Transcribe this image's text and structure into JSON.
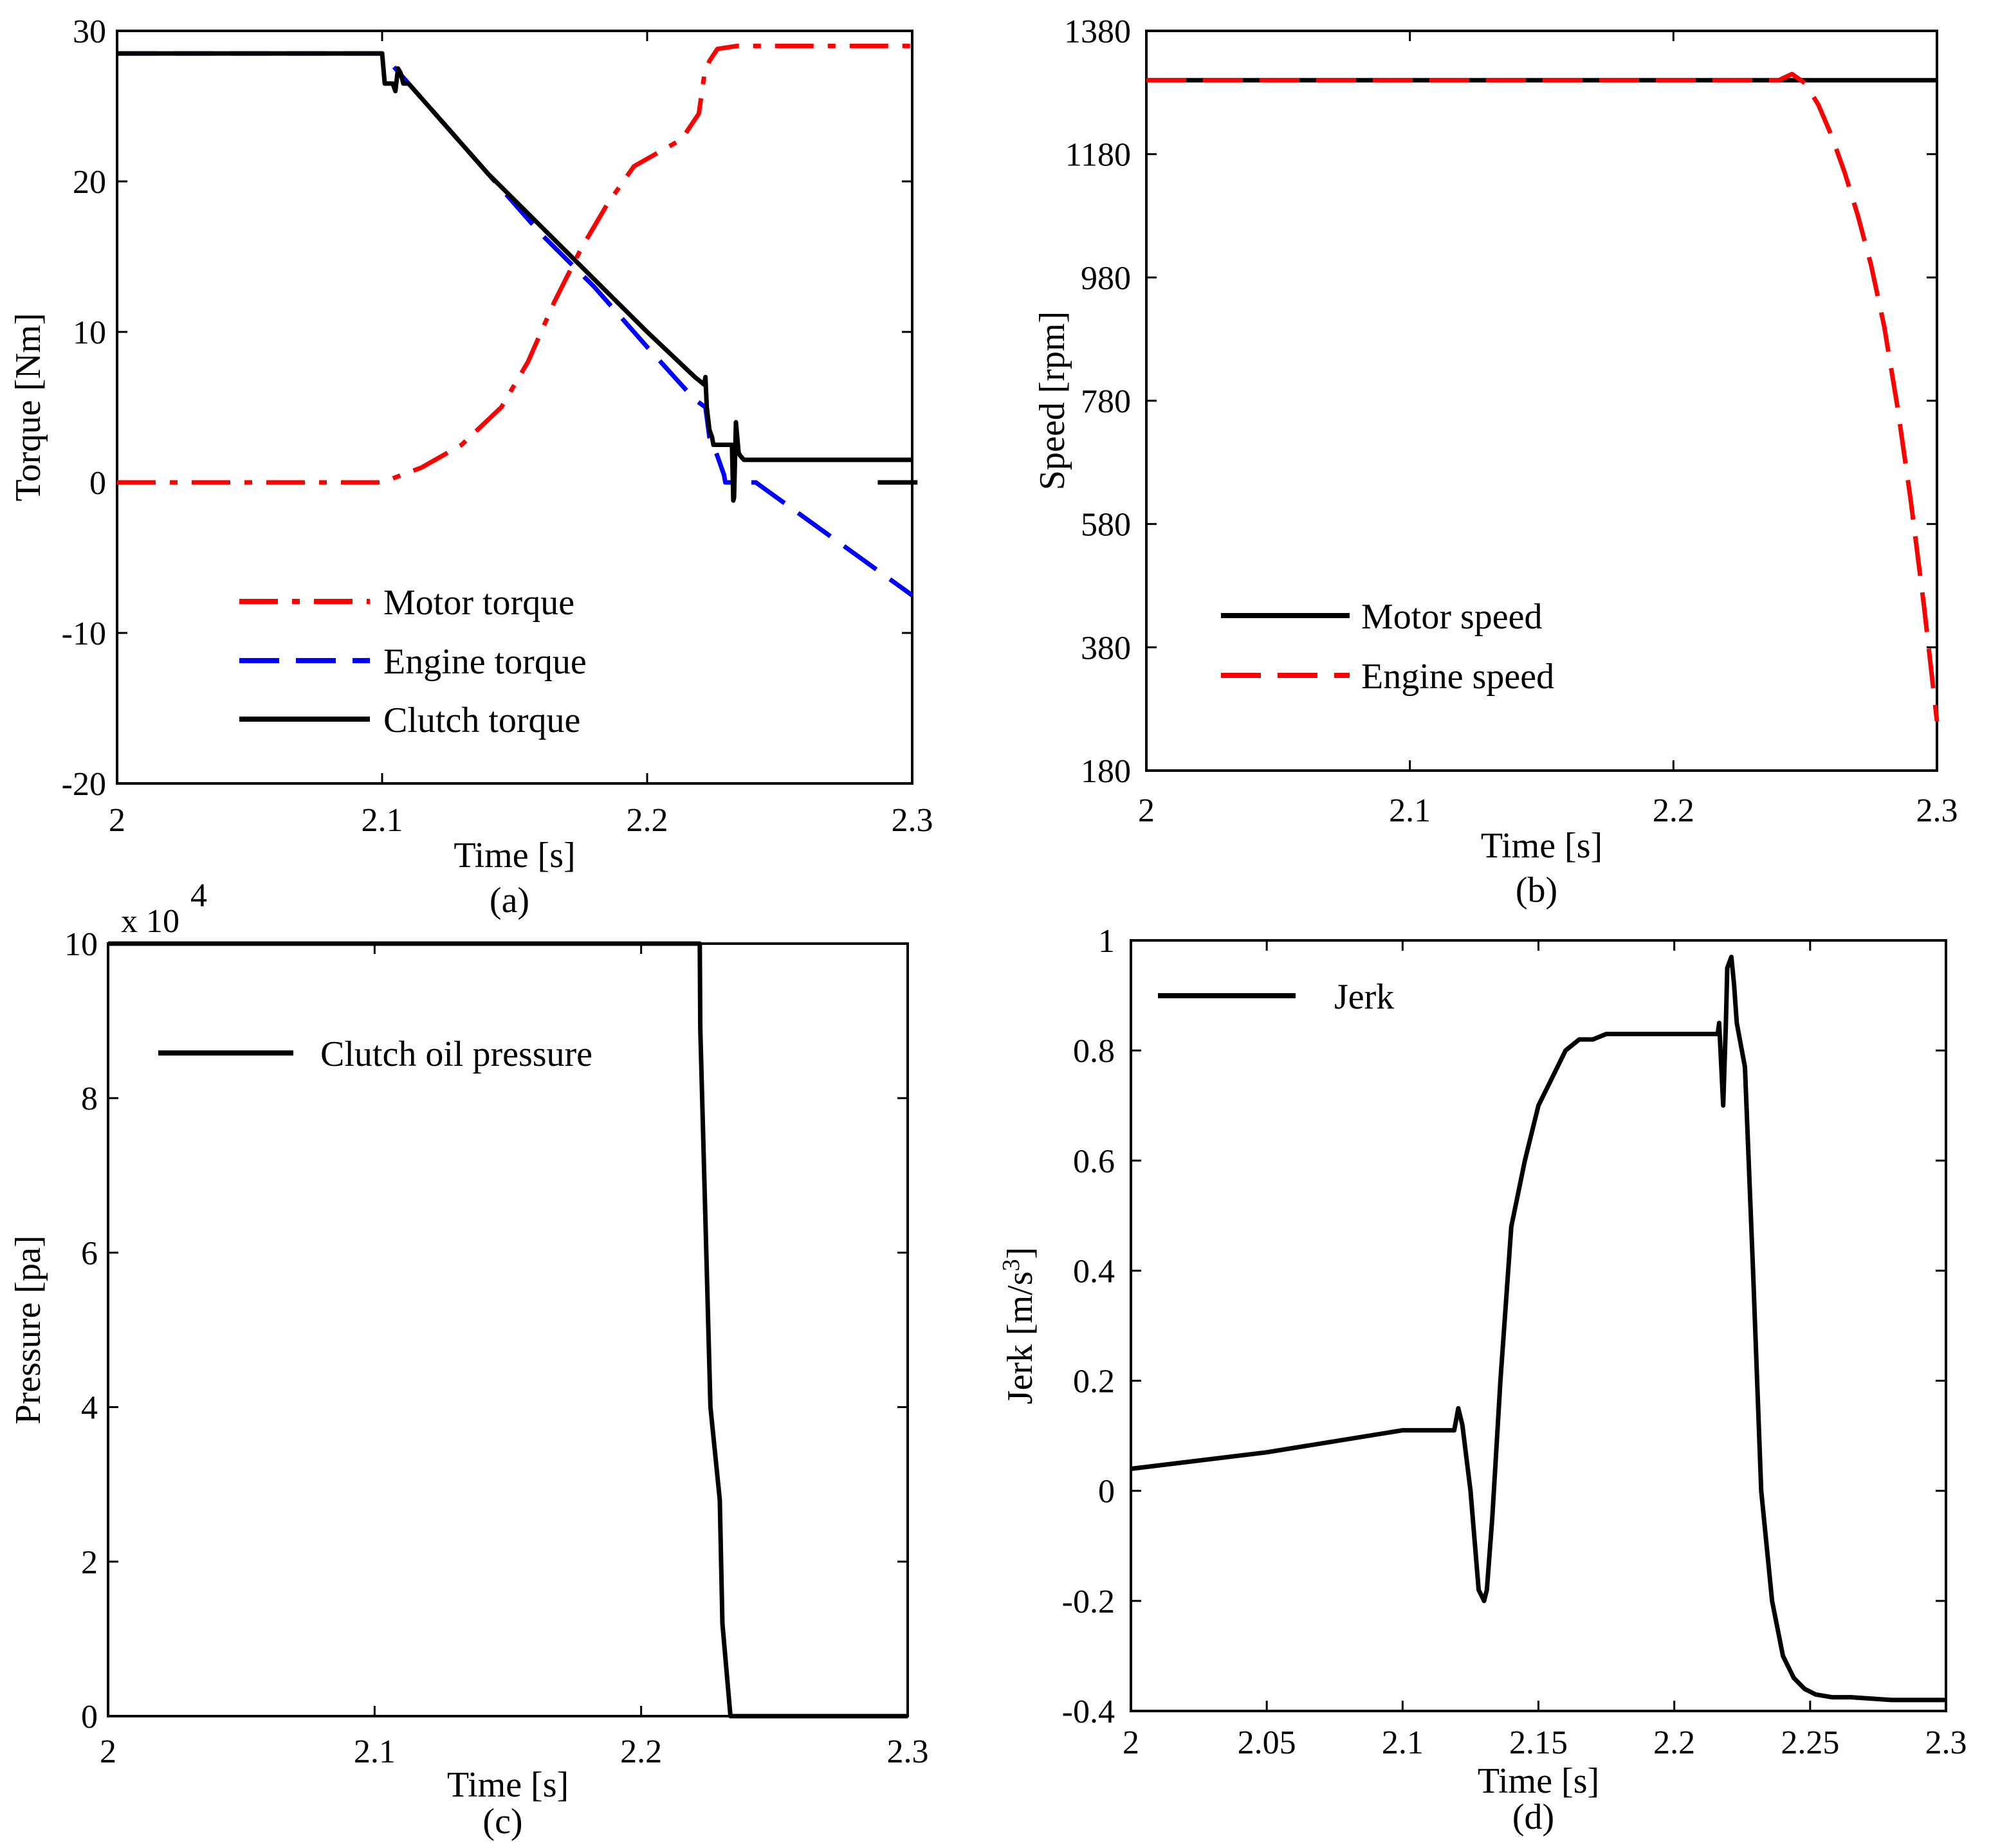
{
  "figure": {
    "captions": [
      "(a)",
      "(b)",
      "(c)",
      "(d)"
    ]
  },
  "chart_data": [
    {
      "type": "line",
      "caption": "(a)",
      "xlabel": "Time [s]",
      "ylabel": "Torque [Nm]",
      "xlim": [
        2,
        2.3
      ],
      "ylim": [
        -20,
        30
      ],
      "xticks": [
        2,
        2.1,
        2.2,
        2.3
      ],
      "xtick_labels": [
        "2",
        "2.1",
        "2.2",
        "2.3"
      ],
      "yticks": [
        -20,
        -10,
        0,
        10,
        20,
        30
      ],
      "ytick_labels": [
        "-20",
        "-10",
        "0",
        "10",
        "20",
        "30"
      ],
      "grid": false,
      "legend_position": "bottom-center",
      "series": [
        {
          "name": "Motor torque",
          "color": "#ff0000",
          "dash": "dashdot",
          "x": [
            2.0,
            2.1,
            2.115,
            2.13,
            2.145,
            2.155,
            2.165,
            2.175,
            2.185,
            2.195,
            2.205,
            2.213,
            2.2195,
            2.2215,
            2.2235,
            2.2265,
            2.234,
            2.3
          ],
          "y": [
            0,
            0,
            1.0,
            2.5,
            5.0,
            8.0,
            12.0,
            15.5,
            18.5,
            21.0,
            22.0,
            22.8,
            24.5,
            27.0,
            28.0,
            28.8,
            29.0,
            29.0
          ]
        },
        {
          "name": "Engine torque",
          "color": "#0000ff",
          "dash": "dashed",
          "x": [
            2.0,
            2.1,
            2.12,
            2.14,
            2.16,
            2.18,
            2.2,
            2.218,
            2.222,
            2.2235,
            2.226,
            2.229,
            2.2295,
            2.241,
            2.3
          ],
          "y": [
            28.5,
            28.5,
            24.5,
            20.5,
            16.5,
            13.0,
            9.0,
            5.5,
            5.0,
            3.0,
            2.0,
            0.5,
            0,
            0,
            -7.5
          ]
        },
        {
          "name": "Clutch torque",
          "color": "#000000",
          "dash": "solid",
          "x": [
            2.0,
            2.1,
            2.101,
            2.104,
            2.105,
            2.106,
            2.107,
            2.108,
            2.11,
            2.125,
            2.14,
            2.16,
            2.18,
            2.2,
            2.218,
            2.2215,
            2.222,
            2.2225,
            2.2235,
            2.2245,
            2.225,
            2.23,
            2.232,
            2.2325,
            2.2328,
            2.2335,
            2.2345,
            2.235,
            2.2365,
            2.3
          ],
          "y": [
            28.5,
            28.5,
            26.5,
            26.5,
            26.0,
            27.5,
            27.2,
            26.5,
            26.5,
            23.5,
            20.5,
            17.0,
            13.5,
            10.0,
            7.0,
            6.5,
            7.0,
            5.0,
            3.5,
            3.0,
            2.5,
            2.5,
            2.5,
            -1.2,
            -1.0,
            4.0,
            2.0,
            1.8,
            1.5,
            1.5
          ]
        }
      ],
      "annotations": [
        {
          "type": "segment",
          "color": "#000000",
          "x": [
            2.287,
            2.302
          ],
          "y": [
            0,
            0
          ]
        }
      ]
    },
    {
      "type": "line",
      "caption": "(b)",
      "xlabel": "Time [s]",
      "ylabel": "Speed [rpm]",
      "xlim": [
        2,
        2.3
      ],
      "ylim": [
        180,
        1380
      ],
      "xticks": [
        2,
        2.1,
        2.2,
        2.3
      ],
      "xtick_labels": [
        "2",
        "2.1",
        "2.2",
        "2.3"
      ],
      "yticks": [
        180,
        380,
        580,
        780,
        980,
        1180,
        1380
      ],
      "ytick_labels": [
        "180",
        "380",
        "580",
        "780",
        "980",
        "1180",
        "1380"
      ],
      "grid": false,
      "legend_position": "bottom-left",
      "series": [
        {
          "name": "Motor speed",
          "color": "#000000",
          "dash": "solid",
          "x": [
            2.0,
            2.3
          ],
          "y": [
            1300,
            1300
          ]
        },
        {
          "name": "Engine speed",
          "color": "#ff0000",
          "dash": "dashed",
          "x": [
            2.0,
            2.22,
            2.23,
            2.24,
            2.245,
            2.25,
            2.255,
            2.26,
            2.265,
            2.27,
            2.275,
            2.28,
            2.285,
            2.29,
            2.295,
            2.3
          ],
          "y": [
            1300,
            1300,
            1300,
            1300,
            1310,
            1295,
            1260,
            1210,
            1150,
            1080,
            1000,
            900,
            770,
            620,
            450,
            260
          ]
        }
      ]
    },
    {
      "type": "line",
      "caption": "(c)",
      "xlabel": "Time [s]",
      "ylabel": "Pressure [pa]",
      "y_multiplier_label": "x 10",
      "y_multiplier_exponent": "4",
      "xlim": [
        2,
        2.3
      ],
      "ylim": [
        0,
        10
      ],
      "xticks": [
        2,
        2.1,
        2.2,
        2.3
      ],
      "xtick_labels": [
        "2",
        "2.1",
        "2.2",
        "2.3"
      ],
      "yticks": [
        0,
        2,
        4,
        6,
        8,
        10
      ],
      "ytick_labels": [
        "0",
        "2",
        "4",
        "6",
        "8",
        "10"
      ],
      "grid": false,
      "legend_position": "top-left",
      "series": [
        {
          "name": "Clutch oil pressure",
          "color": "#000000",
          "dash": "solid",
          "x": [
            2.0,
            2.222,
            2.2222,
            2.226,
            2.2295,
            2.2305,
            2.2335,
            2.3
          ],
          "y": [
            10,
            10,
            8.9,
            4.0,
            2.8,
            1.2,
            0,
            0
          ]
        }
      ]
    },
    {
      "type": "line",
      "caption": "(d)",
      "xlabel": "Time [s]",
      "ylabel": "Jerk [m/s",
      "ylabel_superscript": "3",
      "ylabel_suffix": "]",
      "xlim": [
        2,
        2.3
      ],
      "ylim": [
        -0.4,
        1
      ],
      "xticks": [
        2,
        2.05,
        2.1,
        2.15,
        2.2,
        2.25,
        2.3
      ],
      "xtick_labels": [
        "2",
        "2.05",
        "2.1",
        "2.15",
        "2.2",
        "2.25",
        "2.3"
      ],
      "yticks": [
        -0.4,
        -0.2,
        0,
        0.2,
        0.4,
        0.6,
        0.8,
        1
      ],
      "ytick_labels": [
        "-0.4",
        "-0.2",
        "0",
        "0.2",
        "0.4",
        "0.6",
        "0.8",
        "1"
      ],
      "grid": false,
      "legend_position": "top-left",
      "series": [
        {
          "name": "Jerk",
          "color": "#000000",
          "dash": "solid",
          "x": [
            2.0,
            2.05,
            2.1,
            2.119,
            2.1205,
            2.122,
            2.125,
            2.128,
            2.13,
            2.131,
            2.133,
            2.136,
            2.14,
            2.145,
            2.15,
            2.155,
            2.16,
            2.165,
            2.17,
            2.175,
            2.18,
            2.2,
            2.216,
            2.2165,
            2.218,
            2.219,
            2.2195,
            2.221,
            2.222,
            2.223,
            2.226,
            2.229,
            2.232,
            2.236,
            2.24,
            2.244,
            2.248,
            2.252,
            2.258,
            2.265,
            2.28,
            2.3
          ],
          "y": [
            0.04,
            0.07,
            0.11,
            0.11,
            0.15,
            0.12,
            0.0,
            -0.18,
            -0.2,
            -0.18,
            -0.05,
            0.2,
            0.48,
            0.6,
            0.7,
            0.75,
            0.8,
            0.82,
            0.82,
            0.83,
            0.83,
            0.83,
            0.83,
            0.85,
            0.7,
            0.85,
            0.95,
            0.97,
            0.92,
            0.85,
            0.77,
            0.4,
            0.0,
            -0.2,
            -0.3,
            -0.34,
            -0.36,
            -0.37,
            -0.375,
            -0.375,
            -0.38,
            -0.38
          ]
        }
      ]
    }
  ]
}
